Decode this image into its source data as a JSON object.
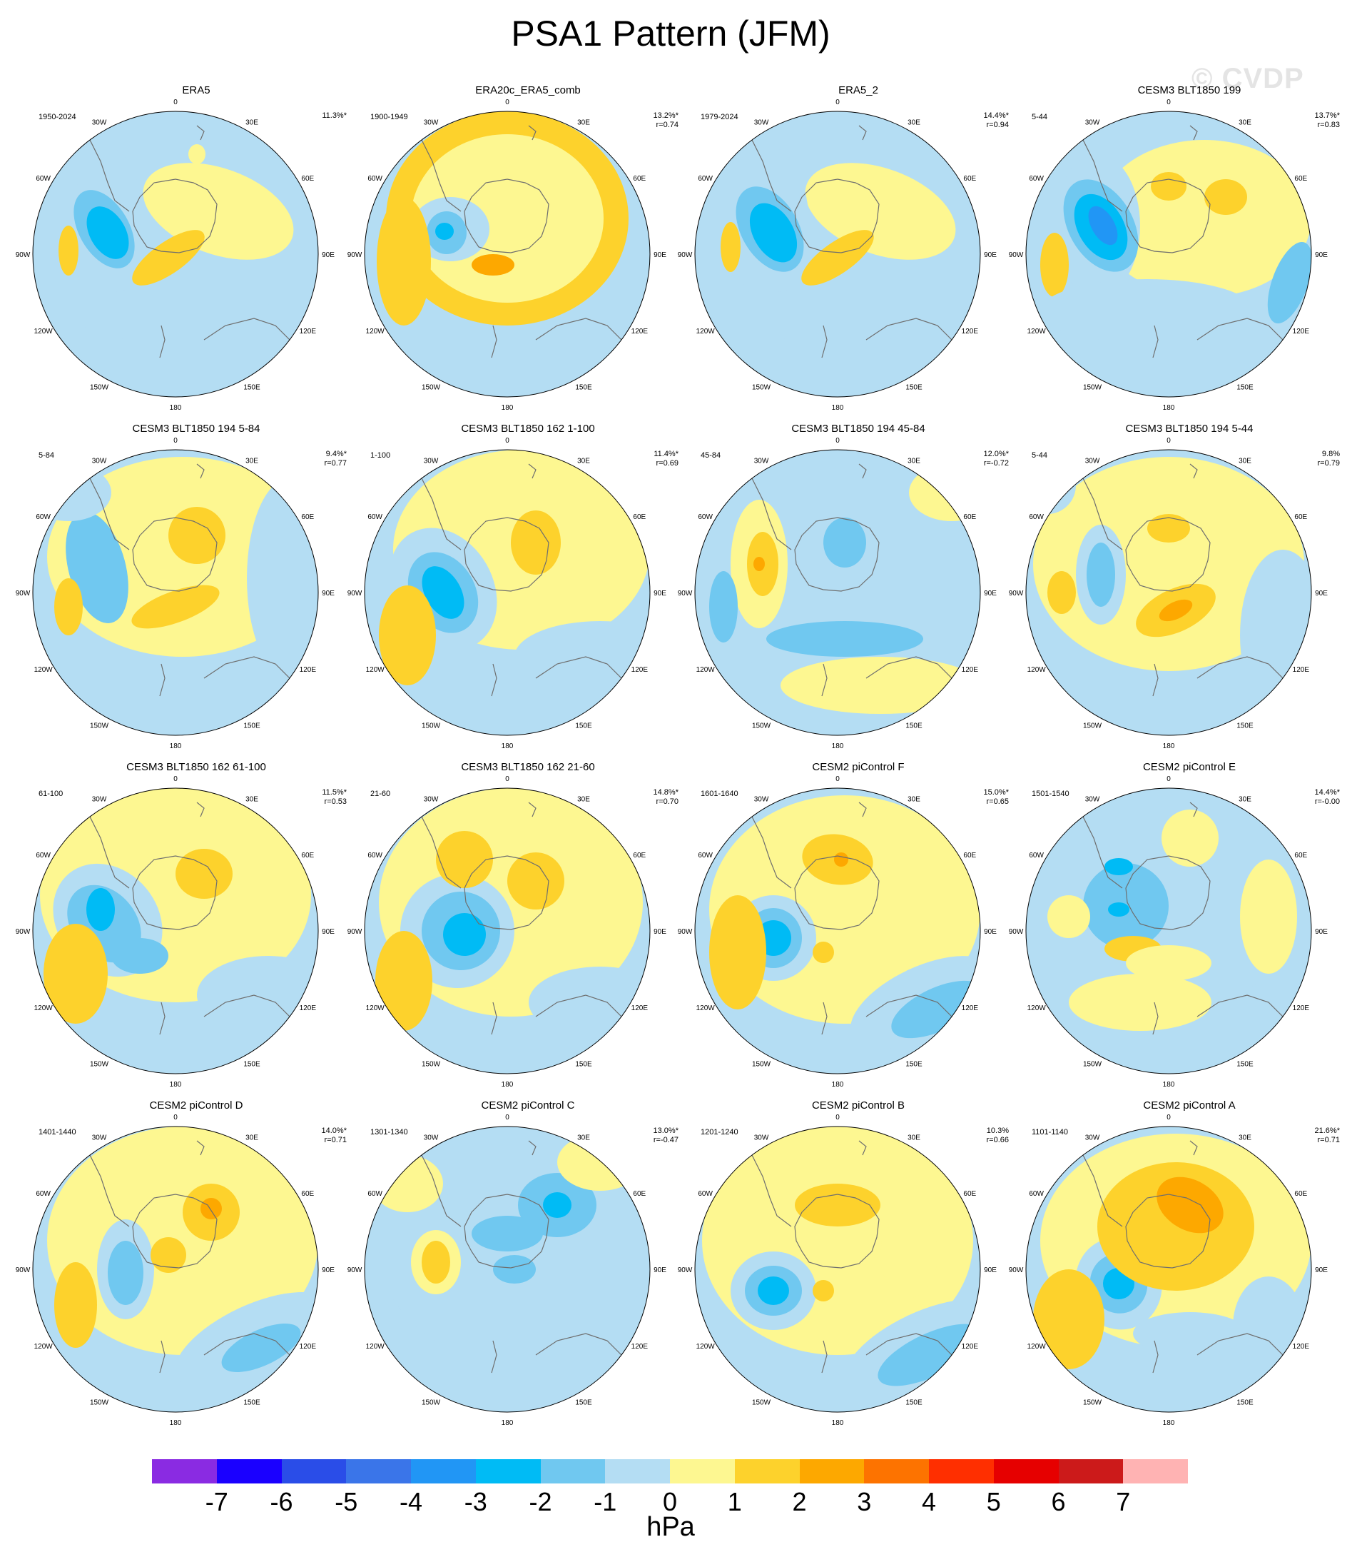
{
  "title": "PSA1 Pattern (JFM)",
  "watermark": "© CVDP",
  "grid_labels": {
    "top": "0",
    "n30e": "30E",
    "n60e": "60E",
    "e90": "90E",
    "s120e": "120E",
    "s150e": "150E",
    "bottom": "180",
    "s150w": "150W",
    "s120w": "120W",
    "w90": "90W",
    "n60w": "60W",
    "n30w": "30W"
  },
  "colors": {
    "c_m7": "#8a2be2",
    "c_m6": "#1a00ff",
    "c_m5": "#2a4de8",
    "c_m4": "#3a75e9",
    "c_m3": "#2196f5",
    "c_m2": "#00bbf5",
    "c_m1": "#70c8f0",
    "c_0n": "#b4ddf3",
    "c_0p": "#fdf791",
    "c_1": "#fdd22c",
    "c_2": "#fda800",
    "c_3": "#fd7300",
    "c_4": "#ff2f00",
    "c_5": "#e60000",
    "c_6": "#cc1a1a",
    "c_7": "#ffb3b3",
    "coast": "#6e6e6e"
  },
  "colorbar": {
    "colors": [
      "#8a2be2",
      "#1a00ff",
      "#2a4de8",
      "#3a75e9",
      "#2196f5",
      "#00bbf5",
      "#70c8f0",
      "#b4ddf3",
      "#fdf791",
      "#fdd22c",
      "#fda800",
      "#fd7300",
      "#ff2f00",
      "#e60000",
      "#cc1a1a",
      "#ffb3b3"
    ],
    "labels": [
      "-7",
      "-6",
      "-5",
      "-4",
      "-3",
      "-2",
      "-1",
      "0",
      "1",
      "2",
      "3",
      "4",
      "5",
      "6",
      "7"
    ],
    "units": "hPa"
  },
  "panels": [
    {
      "title": "ERA5",
      "period": "1950-2024",
      "pct": "11.3%*",
      "r": ""
    },
    {
      "title": "ERA20c_ERA5_comb",
      "period": "1900-1949",
      "pct": "13.2%*",
      "r": "r=0.74"
    },
    {
      "title": "ERA5_2",
      "period": "1979-2024",
      "pct": "14.4%*",
      "r": "r=0.94"
    },
    {
      "title": "CESM3 BLT1850 199",
      "period": "5-44",
      "pct": "13.7%*",
      "r": "r=0.83"
    },
    {
      "title": "CESM3 BLT1850 194 5-84",
      "period": "5-84",
      "pct": "9.4%*",
      "r": "r=0.77"
    },
    {
      "title": "CESM3 BLT1850 162 1-100",
      "period": "1-100",
      "pct": "11.4%*",
      "r": "r=0.69"
    },
    {
      "title": "CESM3 BLT1850 194 45-84",
      "period": "45-84",
      "pct": "12.0%*",
      "r": "r=-0.72"
    },
    {
      "title": "CESM3 BLT1850 194 5-44",
      "period": "5-44",
      "pct": "9.8%",
      "r": "r=0.79"
    },
    {
      "title": "CESM3 BLT1850 162 61-100",
      "period": "61-100",
      "pct": "11.5%*",
      "r": "r=0.53"
    },
    {
      "title": "CESM3 BLT1850 162 21-60",
      "period": "21-60",
      "pct": "14.8%*",
      "r": "r=0.70"
    },
    {
      "title": "CESM2 piControl F",
      "period": "1601-1640",
      "pct": "15.0%*",
      "r": "r=0.65"
    },
    {
      "title": "CESM2 piControl E",
      "period": "1501-1540",
      "pct": "14.4%*",
      "r": "r=-0.00"
    },
    {
      "title": "CESM2 piControl D",
      "period": "1401-1440",
      "pct": "14.0%*",
      "r": "r=0.71"
    },
    {
      "title": "CESM2 piControl C",
      "period": "1301-1340",
      "pct": "13.0%*",
      "r": "r=-0.47"
    },
    {
      "title": "CESM2 piControl B",
      "period": "1201-1240",
      "pct": "10.3%",
      "r": "r=0.66"
    },
    {
      "title": "CESM2 piControl A",
      "period": "1101-1140",
      "pct": "21.6%*",
      "r": "r=0.71"
    }
  ]
}
